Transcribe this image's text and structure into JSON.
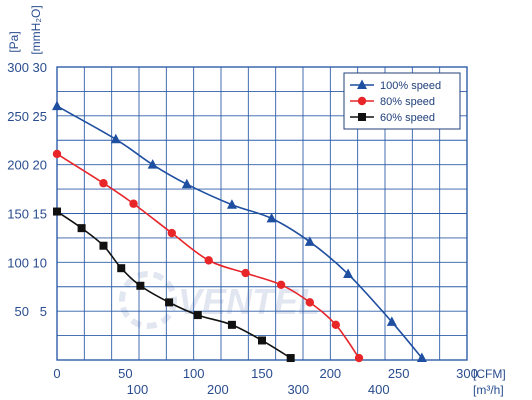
{
  "chart_data": {
    "type": "line",
    "title": "",
    "x_axis": {
      "primary": {
        "unit": "[CFM]",
        "range": [
          0,
          300
        ],
        "ticks": [
          0,
          50,
          100,
          150,
          200,
          250,
          300
        ]
      },
      "secondary": {
        "unit": "[m³/h]",
        "ticks": [
          100,
          200,
          300,
          400
        ]
      }
    },
    "y_axis": {
      "primary": {
        "unit": "[Pa]",
        "range": [
          0,
          300
        ],
        "ticks": [
          50,
          100,
          150,
          200,
          250,
          300
        ]
      },
      "secondary": {
        "unit": "[mmH₂O]",
        "ticks": [
          5,
          10,
          15,
          20,
          25,
          30
        ]
      }
    },
    "grid": true,
    "legend_position": "top-right",
    "series": [
      {
        "name": "100%  speed",
        "marker": "triangle",
        "color": "#1f4fa0",
        "points": [
          [
            0,
            260
          ],
          [
            43,
            226
          ],
          [
            70,
            200
          ],
          [
            95,
            180
          ],
          [
            128,
            159
          ],
          [
            157,
            145
          ],
          [
            185,
            121
          ],
          [
            213,
            88
          ],
          [
            245,
            39
          ],
          [
            267,
            2
          ]
        ]
      },
      {
        "name": "80%  speed",
        "marker": "circle",
        "color": "#e8262a",
        "points": [
          [
            0,
            211
          ],
          [
            34,
            181
          ],
          [
            56,
            160
          ],
          [
            84,
            130
          ],
          [
            111,
            102
          ],
          [
            138,
            89
          ],
          [
            164,
            77
          ],
          [
            185,
            59
          ],
          [
            204,
            36
          ],
          [
            221,
            2
          ]
        ]
      },
      {
        "name": "60%  speed",
        "marker": "square",
        "color": "#111111",
        "points": [
          [
            0,
            152
          ],
          [
            18,
            135
          ],
          [
            34,
            117
          ],
          [
            47,
            94
          ],
          [
            61,
            76
          ],
          [
            82,
            59
          ],
          [
            103,
            46
          ],
          [
            128,
            36
          ],
          [
            150,
            20
          ],
          [
            171,
            2
          ]
        ]
      }
    ]
  },
  "watermark": {
    "text": "VENTEL"
  }
}
